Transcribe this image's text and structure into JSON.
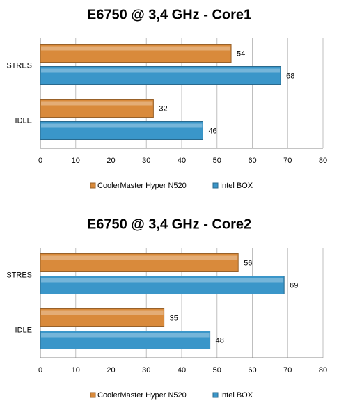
{
  "chart_data": [
    {
      "type": "bar",
      "orientation": "horizontal",
      "title": "E6750 @ 3,4 GHz - Core1",
      "categories": [
        "STRES",
        "IDLE"
      ],
      "series": [
        {
          "name": "CoolerMaster Hyper N520",
          "color": "#d98a3b",
          "values": [
            54,
            32
          ]
        },
        {
          "name": "Intel BOX",
          "color": "#3a96c9",
          "values": [
            68,
            46
          ]
        }
      ],
      "xlim": [
        0,
        80
      ],
      "xticks": [
        0,
        10,
        20,
        30,
        40,
        50,
        60,
        70,
        80
      ],
      "grid": true,
      "legend": "bottom"
    },
    {
      "type": "bar",
      "orientation": "horizontal",
      "title": "E6750 @ 3,4 GHz - Core2",
      "categories": [
        "STRES",
        "IDLE"
      ],
      "series": [
        {
          "name": "CoolerMaster Hyper N520",
          "color": "#d98a3b",
          "values": [
            56,
            35
          ]
        },
        {
          "name": "Intel BOX",
          "color": "#3a96c9",
          "values": [
            69,
            48
          ]
        }
      ],
      "xlim": [
        0,
        80
      ],
      "xticks": [
        0,
        10,
        20,
        30,
        40,
        50,
        60,
        70,
        80
      ],
      "grid": true,
      "legend": "bottom"
    }
  ]
}
